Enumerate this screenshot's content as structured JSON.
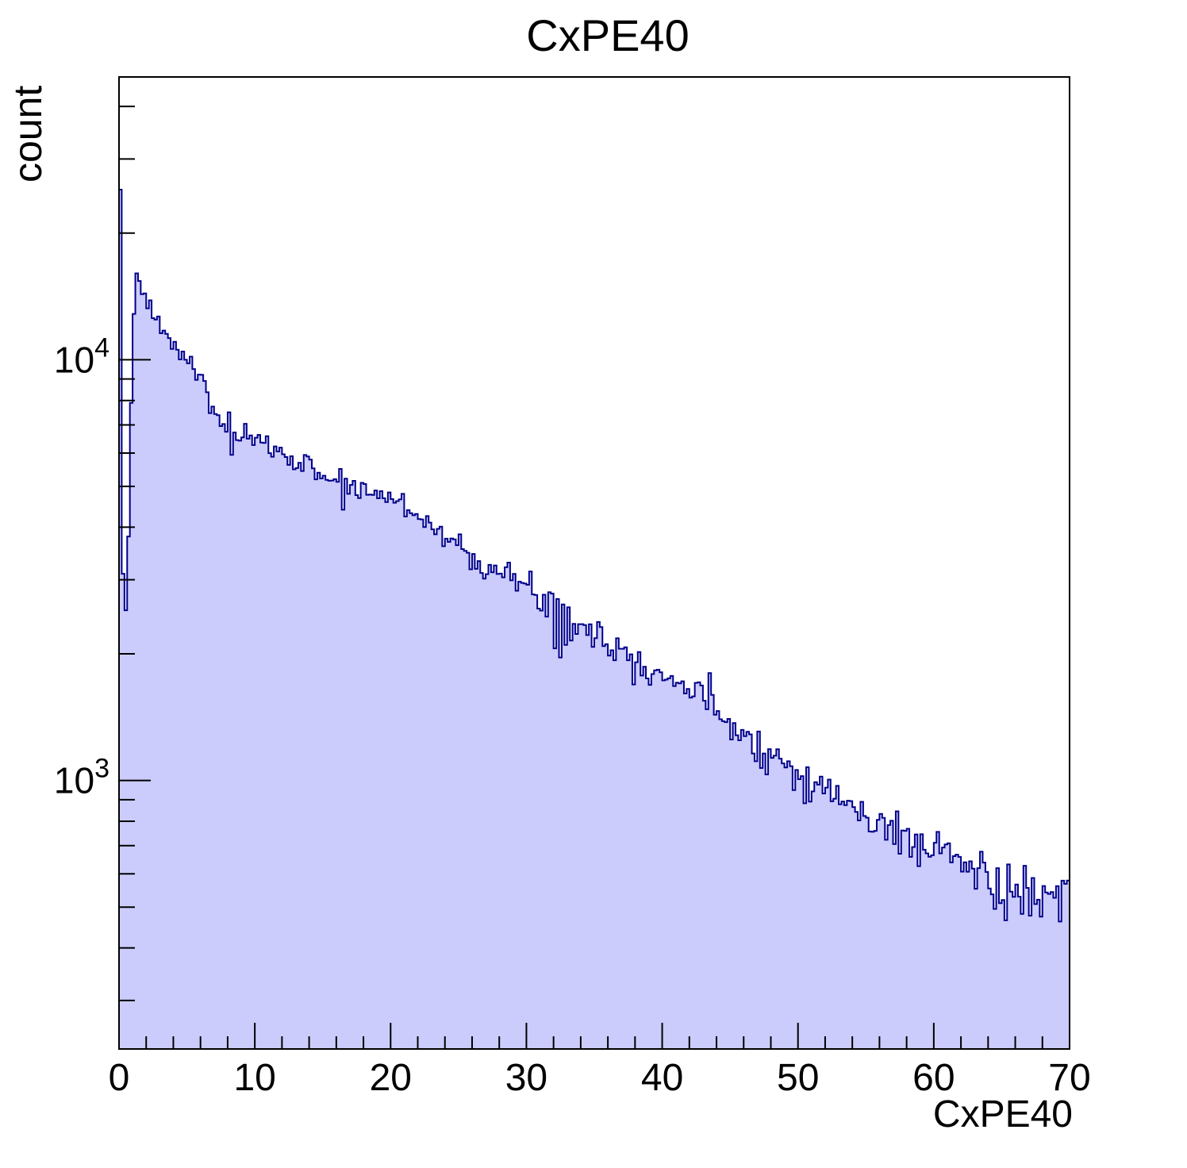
{
  "title": "CxPE40",
  "chart_data": {
    "type": "histogram",
    "title": "CxPE40",
    "xlabel": "CxPE40",
    "ylabel": "count",
    "x_range": [
      0,
      70
    ],
    "bin_width": 0.2,
    "y_scale": "log",
    "ylim": [
      230,
      47000
    ],
    "grid": false,
    "legend": "none",
    "x_major_ticks": [
      0,
      10,
      20,
      30,
      40,
      50,
      60,
      70
    ],
    "x_minor_tick_step": 2,
    "y_major_ticks": [
      {
        "value": 1000,
        "mantissa": "10",
        "exponent": "3"
      },
      {
        "value": 10000,
        "mantissa": "10",
        "exponent": "4"
      }
    ],
    "envelope": [
      [
        0.1,
        25000
      ],
      [
        0.3,
        3100
      ],
      [
        0.5,
        2550
      ],
      [
        0.6,
        2100
      ],
      [
        0.7,
        3800
      ],
      [
        0.8,
        6200
      ],
      [
        0.9,
        7900
      ],
      [
        1.0,
        9800
      ],
      [
        1.1,
        12600
      ],
      [
        1.2,
        14300
      ],
      [
        1.3,
        16300
      ],
      [
        1.4,
        17100
      ],
      [
        1.5,
        15800
      ],
      [
        1.7,
        14800
      ],
      [
        1.9,
        13900
      ],
      [
        2.1,
        12900
      ],
      [
        2.3,
        13500
      ],
      [
        2.5,
        12700
      ],
      [
        2.8,
        12300
      ],
      [
        3.2,
        11600
      ],
      [
        3.6,
        11200
      ],
      [
        4.0,
        10800
      ],
      [
        4.4,
        10400
      ],
      [
        4.8,
        10100
      ],
      [
        5.2,
        10000
      ],
      [
        5.6,
        9400
      ],
      [
        5.9,
        8900
      ],
      [
        6.2,
        9100
      ],
      [
        6.5,
        8200
      ],
      [
        6.8,
        7700
      ],
      [
        7.1,
        7400
      ],
      [
        7.5,
        7000
      ],
      [
        8.0,
        6800
      ],
      [
        8.6,
        6600
      ],
      [
        9.2,
        6500
      ],
      [
        10,
        6400
      ],
      [
        11,
        6200
      ],
      [
        12,
        6000
      ],
      [
        13,
        5750
      ],
      [
        14,
        5550
      ],
      [
        15,
        5350
      ],
      [
        16,
        5150
      ],
      [
        17,
        4950
      ],
      [
        18,
        4900
      ],
      [
        19,
        4800
      ],
      [
        20,
        4700
      ],
      [
        21,
        4500
      ],
      [
        22,
        4300
      ],
      [
        23,
        4050
      ],
      [
        24,
        3800
      ],
      [
        25,
        3600
      ],
      [
        26,
        3450
      ],
      [
        27,
        3260
      ],
      [
        28,
        3130
      ],
      [
        29,
        2980
      ],
      [
        30,
        2870
      ],
      [
        31,
        2760
      ],
      [
        32,
        2600
      ],
      [
        33,
        2400
      ],
      [
        34,
        2400
      ],
      [
        35,
        2250
      ],
      [
        36,
        2130
      ],
      [
        37,
        2050
      ],
      [
        38,
        1950
      ],
      [
        39,
        1860
      ],
      [
        40,
        1800
      ],
      [
        41,
        1720
      ],
      [
        42,
        1650
      ],
      [
        43,
        1570
      ],
      [
        44,
        1480
      ],
      [
        45,
        1390
      ],
      [
        46,
        1290
      ],
      [
        47,
        1220
      ],
      [
        48,
        1150
      ],
      [
        49,
        1100
      ],
      [
        50,
        1050
      ],
      [
        51,
        990
      ],
      [
        52,
        950
      ],
      [
        53,
        905
      ],
      [
        54,
        860
      ],
      [
        55,
        815
      ],
      [
        56,
        780
      ],
      [
        57,
        750
      ],
      [
        58,
        730
      ],
      [
        59,
        710
      ],
      [
        60,
        695
      ],
      [
        61,
        672
      ],
      [
        62,
        640
      ],
      [
        63,
        608
      ],
      [
        64,
        580
      ],
      [
        65,
        560
      ],
      [
        66,
        545
      ],
      [
        67,
        532
      ],
      [
        68,
        520
      ],
      [
        69,
        518
      ],
      [
        70,
        545
      ]
    ],
    "outlier_bins": [
      [
        8.1,
        7500
      ],
      [
        8.3,
        5940
      ],
      [
        16.3,
        5500
      ],
      [
        16.5,
        4400
      ],
      [
        31.9,
        2780
      ],
      [
        32.1,
        2060
      ],
      [
        32.3,
        2700
      ],
      [
        32.5,
        1960
      ],
      [
        32.7,
        2620
      ],
      [
        32.9,
        2100
      ],
      [
        33.1,
        2580
      ],
      [
        33.3,
        2150
      ],
      [
        35.3,
        2380
      ],
      [
        36.1,
        1980
      ],
      [
        65.3,
        465
      ],
      [
        69.3,
        462
      ]
    ],
    "noise": {
      "seed": 7,
      "sigma_base": 0.009,
      "sigma_slope": 0.0003
    },
    "colors": {
      "fill": "#ccccfc",
      "line": "#00008b",
      "frame": "#000000",
      "background": "#ffffff"
    }
  }
}
